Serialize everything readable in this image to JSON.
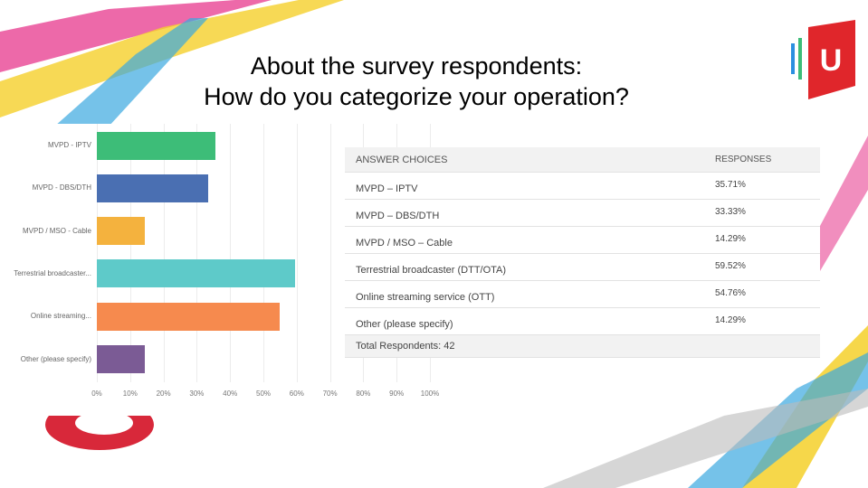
{
  "title": [
    "About the survey respondents:",
    "How do you categorize your operation?"
  ],
  "chart_data": {
    "type": "hbar",
    "categories": [
      "MVPD - IPTV",
      "MVPD - DBS/DTH",
      "MVPD / MSO - Cable",
      "Terrestrial broadcaster...",
      "Online streaming...",
      "Other (please specify)"
    ],
    "values": [
      35.71,
      33.33,
      14.29,
      59.52,
      54.76,
      14.29
    ],
    "colors": [
      "#3dbd78",
      "#4a6fb2",
      "#f4b23e",
      "#5ecac9",
      "#f68a4e",
      "#7b5b95"
    ],
    "xlim": [
      0,
      100
    ],
    "xticks": [
      {
        "value": 0,
        "label": "0%"
      },
      {
        "value": 10,
        "label": "10%"
      },
      {
        "value": 20,
        "label": "20%"
      },
      {
        "value": 30,
        "label": "30%"
      },
      {
        "value": 40,
        "label": "40%"
      },
      {
        "value": 50,
        "label": "50%"
      },
      {
        "value": 60,
        "label": "60%"
      },
      {
        "value": 70,
        "label": "70%"
      },
      {
        "value": 80,
        "label": "80%"
      },
      {
        "value": 90,
        "label": "90%"
      },
      {
        "value": 100,
        "label": "100%"
      }
    ],
    "grid": true
  },
  "table": {
    "header": [
      "ANSWER CHOICES",
      "RESPONSES"
    ],
    "rows": [
      [
        "MVPD – IPTV",
        "35.71%"
      ],
      [
        "MVPD – DBS/DTH",
        "33.33%"
      ],
      [
        "MVPD / MSO – Cable",
        "14.29%"
      ],
      [
        "Terrestrial broadcaster (DTT/OTA)",
        "59.52%"
      ],
      [
        "Online streaming service (OTT)",
        "54.76%"
      ],
      [
        "Other (please specify)",
        "14.29%"
      ]
    ],
    "footer": "Total Respondents: 42"
  }
}
